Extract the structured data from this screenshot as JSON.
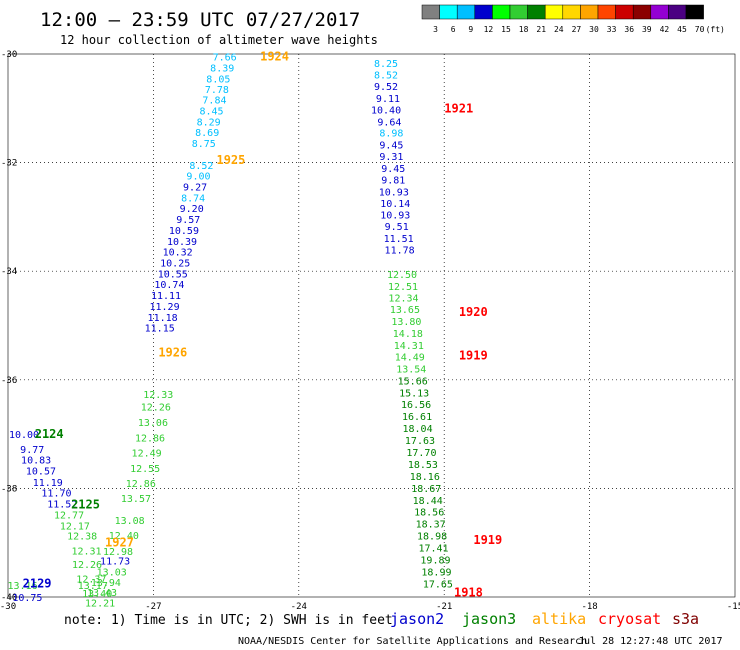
{
  "header": {
    "title": "12:00 — 23:59 UTC 07/27/2017",
    "subtitle": "12 hour collection of altimeter wave heights"
  },
  "color_scale": {
    "labels": [
      "3",
      "6",
      "9",
      "12",
      "15",
      "18",
      "21",
      "24",
      "27",
      "30",
      "33",
      "36",
      "39",
      "42",
      "45",
      "70"
    ],
    "unit": "(ft)",
    "colors": [
      "#808080",
      "#00ffff",
      "#00bfff",
      "#0000cd",
      "#00ff00",
      "#32cd32",
      "#008000",
      "#ffff00",
      "#ffd700",
      "#ffa500",
      "#ff4500",
      "#cc0000",
      "#8b0000",
      "#9400d3",
      "#4b0082",
      "#000000"
    ]
  },
  "footer": {
    "note": "note: 1) Time is in UTC; 2) SWH is in feet",
    "credit": "NOAA/NESDIS Center for Satellite Applications and Research",
    "timestamp": "Jul 28 12:27:48 UTC 2017"
  },
  "legend": [
    {
      "name": "jason2",
      "color": "#0000cd"
    },
    {
      "name": "jason3",
      "color": "#008000"
    },
    {
      "name": "altika",
      "color": "#ffa500"
    },
    {
      "name": "cryosat",
      "color": "#ff0000"
    },
    {
      "name": "s3a",
      "color": "#800000"
    }
  ],
  "chart_data": {
    "type": "scatter",
    "title": "12 hour collection of altimeter wave heights",
    "xlim": [
      -30,
      -15
    ],
    "ylim": [
      -40,
      -30
    ],
    "x_ticks": [
      "-30",
      "-27",
      "-24",
      "-21",
      "-18",
      "-15"
    ],
    "y_ticks": [
      "-30",
      "-32",
      "-34",
      "-36",
      "-38",
      "-40"
    ],
    "grid": true,
    "value_colors": {
      "cyan": "#00bfff",
      "blue": "#0000cd",
      "lgreen": "#32cd32",
      "green": "#008000"
    },
    "track_labels": [
      {
        "text": "1924",
        "lon": -24.5,
        "lat": -30.05,
        "color": "#ffa500"
      },
      {
        "text": "1925",
        "lon": -25.4,
        "lat": -31.95,
        "color": "#ffa500"
      },
      {
        "text": "1926",
        "lon": -26.6,
        "lat": -35.5,
        "color": "#ffa500"
      },
      {
        "text": "1927",
        "lon": -27.7,
        "lat": -39.0,
        "color": "#ffa500"
      },
      {
        "text": "1921",
        "lon": -20.7,
        "lat": -31.0,
        "color": "#ff0000"
      },
      {
        "text": "1920",
        "lon": -20.4,
        "lat": -34.75,
        "color": "#ff0000"
      },
      {
        "text": "1919",
        "lon": -20.4,
        "lat": -35.55,
        "color": "#ff0000"
      },
      {
        "text": "1919",
        "lon": -20.1,
        "lat": -38.95,
        "color": "#ff0000"
      },
      {
        "text": "1918",
        "lon": -20.5,
        "lat": -39.92,
        "color": "#ff0000"
      },
      {
        "text": "2124",
        "lon": -29.15,
        "lat": -37.0,
        "color": "#008000"
      },
      {
        "text": "2125",
        "lon": -28.4,
        "lat": -38.3,
        "color": "#008000"
      },
      {
        "text": "2129",
        "lon": -29.4,
        "lat": -39.75,
        "color": "#0000cd"
      }
    ],
    "points": [
      {
        "v": "7.66",
        "lon": -25.53,
        "lat": -30.05,
        "c": "cyan"
      },
      {
        "v": "8.39",
        "lon": -25.58,
        "lat": -30.25,
        "c": "cyan"
      },
      {
        "v": "8.05",
        "lon": -25.66,
        "lat": -30.45,
        "c": "cyan"
      },
      {
        "v": "7.78",
        "lon": -25.69,
        "lat": -30.64,
        "c": "cyan"
      },
      {
        "v": "7.84",
        "lon": -25.74,
        "lat": -30.84,
        "c": "cyan"
      },
      {
        "v": "8.45",
        "lon": -25.8,
        "lat": -31.04,
        "c": "cyan"
      },
      {
        "v": "8.29",
        "lon": -25.86,
        "lat": -31.24,
        "c": "cyan"
      },
      {
        "v": "8.69",
        "lon": -25.89,
        "lat": -31.44,
        "c": "cyan"
      },
      {
        "v": "8.75",
        "lon": -25.96,
        "lat": -31.64,
        "c": "cyan"
      },
      {
        "v": "8.52",
        "lon": -26.01,
        "lat": -32.04,
        "c": "cyan"
      },
      {
        "v": "9.00",
        "lon": -26.07,
        "lat": -32.24,
        "c": "cyan"
      },
      {
        "v": "9.27",
        "lon": -26.14,
        "lat": -32.44,
        "c": "blue"
      },
      {
        "v": "8.74",
        "lon": -26.18,
        "lat": -32.64,
        "c": "cyan"
      },
      {
        "v": "9.20",
        "lon": -26.21,
        "lat": -32.84,
        "c": "blue"
      },
      {
        "v": "9.57",
        "lon": -26.28,
        "lat": -33.04,
        "c": "blue"
      },
      {
        "v": "10.59",
        "lon": -26.37,
        "lat": -33.24,
        "c": "blue"
      },
      {
        "v": "10.39",
        "lon": -26.41,
        "lat": -33.44,
        "c": "blue"
      },
      {
        "v": "10.32",
        "lon": -26.5,
        "lat": -33.64,
        "c": "blue"
      },
      {
        "v": "10.25",
        "lon": -26.55,
        "lat": -33.84,
        "c": "blue"
      },
      {
        "v": "10.55",
        "lon": -26.6,
        "lat": -34.04,
        "c": "blue"
      },
      {
        "v": "10.74",
        "lon": -26.67,
        "lat": -34.24,
        "c": "blue"
      },
      {
        "v": "11.11",
        "lon": -26.74,
        "lat": -34.44,
        "c": "blue"
      },
      {
        "v": "11.29",
        "lon": -26.77,
        "lat": -34.64,
        "c": "blue"
      },
      {
        "v": "11.18",
        "lon": -26.81,
        "lat": -34.84,
        "c": "blue"
      },
      {
        "v": "11.15",
        "lon": -26.87,
        "lat": -35.04,
        "c": "blue"
      },
      {
        "v": "12.33",
        "lon": -26.9,
        "lat": -36.26,
        "c": "lgreen"
      },
      {
        "v": "12.26",
        "lon": -26.95,
        "lat": -36.49,
        "c": "lgreen"
      },
      {
        "v": "13.06",
        "lon": -27.01,
        "lat": -36.78,
        "c": "lgreen"
      },
      {
        "v": "12.86",
        "lon": -27.07,
        "lat": -37.06,
        "c": "lgreen"
      },
      {
        "v": "12.49",
        "lon": -27.14,
        "lat": -37.34,
        "c": "lgreen"
      },
      {
        "v": "12.55",
        "lon": -27.17,
        "lat": -37.62,
        "c": "lgreen"
      },
      {
        "v": "12.86",
        "lon": -27.26,
        "lat": -37.9,
        "c": "lgreen"
      },
      {
        "v": "13.57",
        "lon": -27.36,
        "lat": -38.18,
        "c": "lgreen"
      },
      {
        "v": "13.08",
        "lon": -27.49,
        "lat": -38.58,
        "c": "lgreen"
      },
      {
        "v": "12.40",
        "lon": -27.61,
        "lat": -38.86,
        "c": "lgreen"
      },
      {
        "v": "12.98",
        "lon": -27.73,
        "lat": -39.15,
        "c": "lgreen"
      },
      {
        "v": "11.73",
        "lon": -27.79,
        "lat": -39.33,
        "c": "blue"
      },
      {
        "v": "13.03",
        "lon": -27.86,
        "lat": -39.53,
        "c": "lgreen"
      },
      {
        "v": "13.94",
        "lon": -27.98,
        "lat": -39.72,
        "c": "lgreen"
      },
      {
        "v": "13.43",
        "lon": -28.06,
        "lat": -39.91,
        "c": "lgreen"
      },
      {
        "v": "12.21",
        "lon": -28.1,
        "lat": -40.1,
        "c": "lgreen"
      },
      {
        "v": "10.00",
        "lon": -29.67,
        "lat": -37.0,
        "c": "blue"
      },
      {
        "v": "9.77",
        "lon": -29.5,
        "lat": -37.27,
        "c": "blue"
      },
      {
        "v": "10.83",
        "lon": -29.42,
        "lat": -37.47,
        "c": "blue"
      },
      {
        "v": "10.57",
        "lon": -29.32,
        "lat": -37.67,
        "c": "blue"
      },
      {
        "v": "11.19",
        "lon": -29.18,
        "lat": -37.88,
        "c": "blue"
      },
      {
        "v": "11.70",
        "lon": -29.0,
        "lat": -38.08,
        "c": "blue"
      },
      {
        "v": "11.52",
        "lon": -28.88,
        "lat": -38.28,
        "c": "blue"
      },
      {
        "v": "12.77",
        "lon": -28.74,
        "lat": -38.48,
        "c": "lgreen"
      },
      {
        "v": "12.17",
        "lon": -28.62,
        "lat": -38.68,
        "c": "lgreen"
      },
      {
        "v": "12.38",
        "lon": -28.47,
        "lat": -38.87,
        "c": "lgreen"
      },
      {
        "v": "12.31",
        "lon": -28.38,
        "lat": -39.14,
        "c": "lgreen"
      },
      {
        "v": "12.26",
        "lon": -28.37,
        "lat": -39.39,
        "c": "lgreen"
      },
      {
        "v": "12.37",
        "lon": -28.28,
        "lat": -39.66,
        "c": "lgreen"
      },
      {
        "v": "13.40",
        "lon": -28.16,
        "lat": -39.93,
        "c": "lgreen"
      },
      {
        "v": "13.16",
        "lon": -29.7,
        "lat": -39.78,
        "c": "lgreen"
      },
      {
        "v": "10.75",
        "lon": -29.6,
        "lat": -40.0,
        "c": "blue"
      },
      {
        "v": "13.17",
        "lon": -28.25,
        "lat": -39.78,
        "c": "lgreen"
      },
      {
        "v": "8.25",
        "lon": -22.2,
        "lat": -30.17,
        "c": "cyan"
      },
      {
        "v": "8.52",
        "lon": -22.2,
        "lat": -30.38,
        "c": "cyan"
      },
      {
        "v": "9.52",
        "lon": -22.2,
        "lat": -30.59,
        "c": "blue"
      },
      {
        "v": "9.11",
        "lon": -22.16,
        "lat": -30.81,
        "c": "blue"
      },
      {
        "v": "10.40",
        "lon": -22.2,
        "lat": -31.02,
        "c": "blue"
      },
      {
        "v": "9.64",
        "lon": -22.13,
        "lat": -31.24,
        "c": "blue"
      },
      {
        "v": "8.98",
        "lon": -22.09,
        "lat": -31.45,
        "c": "cyan"
      },
      {
        "v": "9.45",
        "lon": -22.09,
        "lat": -31.67,
        "c": "blue"
      },
      {
        "v": "9.31",
        "lon": -22.09,
        "lat": -31.88,
        "c": "blue"
      },
      {
        "v": "9.45",
        "lon": -22.05,
        "lat": -32.1,
        "c": "blue"
      },
      {
        "v": "9.81",
        "lon": -22.05,
        "lat": -32.31,
        "c": "blue"
      },
      {
        "v": "10.93",
        "lon": -22.04,
        "lat": -32.53,
        "c": "blue"
      },
      {
        "v": "10.14",
        "lon": -22.01,
        "lat": -32.74,
        "c": "blue"
      },
      {
        "v": "10.93",
        "lon": -22.01,
        "lat": -32.96,
        "c": "blue"
      },
      {
        "v": "9.51",
        "lon": -21.98,
        "lat": -33.17,
        "c": "blue"
      },
      {
        "v": "11.51",
        "lon": -21.94,
        "lat": -33.39,
        "c": "blue"
      },
      {
        "v": "11.78",
        "lon": -21.92,
        "lat": -33.6,
        "c": "blue"
      },
      {
        "v": "12.50",
        "lon": -21.87,
        "lat": -34.05,
        "c": "lgreen"
      },
      {
        "v": "12.51",
        "lon": -21.85,
        "lat": -34.27,
        "c": "lgreen"
      },
      {
        "v": "12.34",
        "lon": -21.84,
        "lat": -34.48,
        "c": "lgreen"
      },
      {
        "v": "13.65",
        "lon": -21.81,
        "lat": -34.7,
        "c": "lgreen"
      },
      {
        "v": "13.80",
        "lon": -21.78,
        "lat": -34.92,
        "c": "lgreen"
      },
      {
        "v": "14.18",
        "lon": -21.75,
        "lat": -35.14,
        "c": "lgreen"
      },
      {
        "v": "14.31",
        "lon": -21.73,
        "lat": -35.36,
        "c": "lgreen"
      },
      {
        "v": "14.49",
        "lon": -21.71,
        "lat": -35.57,
        "c": "lgreen"
      },
      {
        "v": "13.54",
        "lon": -21.68,
        "lat": -35.79,
        "c": "lgreen"
      },
      {
        "v": "15.66",
        "lon": -21.65,
        "lat": -36.01,
        "c": "green"
      },
      {
        "v": "15.13",
        "lon": -21.62,
        "lat": -36.23,
        "c": "green"
      },
      {
        "v": "16.56",
        "lon": -21.58,
        "lat": -36.45,
        "c": "green"
      },
      {
        "v": "16.61",
        "lon": -21.56,
        "lat": -36.67,
        "c": "green"
      },
      {
        "v": "18.04",
        "lon": -21.55,
        "lat": -36.89,
        "c": "green"
      },
      {
        "v": "17.63",
        "lon": -21.5,
        "lat": -37.11,
        "c": "green"
      },
      {
        "v": "17.70",
        "lon": -21.47,
        "lat": -37.33,
        "c": "green"
      },
      {
        "v": "18.53",
        "lon": -21.44,
        "lat": -37.55,
        "c": "green"
      },
      {
        "v": "18.16",
        "lon": -21.4,
        "lat": -37.77,
        "c": "green"
      },
      {
        "v": "18.67",
        "lon": -21.37,
        "lat": -37.99,
        "c": "green"
      },
      {
        "v": "18.44",
        "lon": -21.34,
        "lat": -38.21,
        "c": "green"
      },
      {
        "v": "18.56",
        "lon": -21.31,
        "lat": -38.43,
        "c": "green"
      },
      {
        "v": "18.37",
        "lon": -21.28,
        "lat": -38.65,
        "c": "green"
      },
      {
        "v": "18.98",
        "lon": -21.25,
        "lat": -38.87,
        "c": "green"
      },
      {
        "v": "17.41",
        "lon": -21.22,
        "lat": -39.09,
        "c": "green"
      },
      {
        "v": "19.89",
        "lon": -21.18,
        "lat": -39.31,
        "c": "green"
      },
      {
        "v": "18.99",
        "lon": -21.16,
        "lat": -39.53,
        "c": "green"
      },
      {
        "v": "17.65",
        "lon": -21.13,
        "lat": -39.75,
        "c": "green"
      }
    ]
  }
}
